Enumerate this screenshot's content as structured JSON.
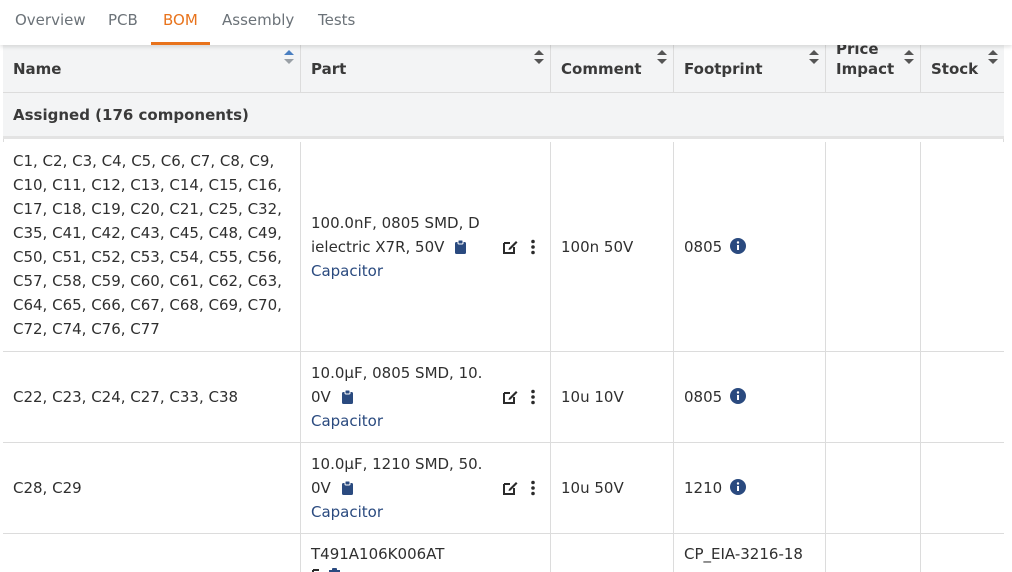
{
  "tabs": [
    {
      "label": "Overview"
    },
    {
      "label": "PCB"
    },
    {
      "label": "BOM"
    },
    {
      "label": "Assembly"
    },
    {
      "label": "Tests"
    }
  ],
  "active_tab": "BOM",
  "accent_color": "#e8731c",
  "link_color": "#2a4a7f",
  "table": {
    "columns": [
      {
        "label": "Name"
      },
      {
        "label": "Part"
      },
      {
        "label": "Comment"
      },
      {
        "label": "Footprint"
      },
      {
        "label": "Price Impact"
      },
      {
        "label": "Stock"
      }
    ],
    "group_label": "Assigned (176 components)",
    "rows": [
      {
        "name": "C1, C2, C3, C4, C5, C6, C7, C8, C9, C10, C11, C12, C13, C14, C15, C16, C17, C18, C19, C20, C21, C25, C32, C35, C41, C42, C43, C45, C48, C49, C50, C51, C52, C53, C54, C55, C56, C57, C58, C59, C60, C61, C62, C63, C64, C65, C66, C67, C68, C69, C70, C72, C74, C76, C77",
        "part_line1": "100.0nF, 0805 SMD, D",
        "part_line2": "ielectric X7R, 50V",
        "part_category": "Capacitor",
        "comment": "100n 50V",
        "footprint": "0805"
      },
      {
        "name": "C22, C23, C24, C27, C33, C38",
        "part_line1": "10.0µF, 0805 SMD, 10.",
        "part_line2": "0V",
        "part_category": "Capacitor",
        "comment": "10u 10V",
        "footprint": "0805"
      },
      {
        "name": "C28, C29",
        "part_line1": "10.0µF, 1210 SMD, 50.",
        "part_line2": "0V",
        "part_category": "Capacitor",
        "comment": "10u 50V",
        "footprint": "1210"
      },
      {
        "name": "",
        "part_line1": "T491A106K006AT",
        "part_line2": "",
        "part_category": "",
        "comment": "",
        "footprint": "CP_EIA-3216-18"
      }
    ]
  }
}
